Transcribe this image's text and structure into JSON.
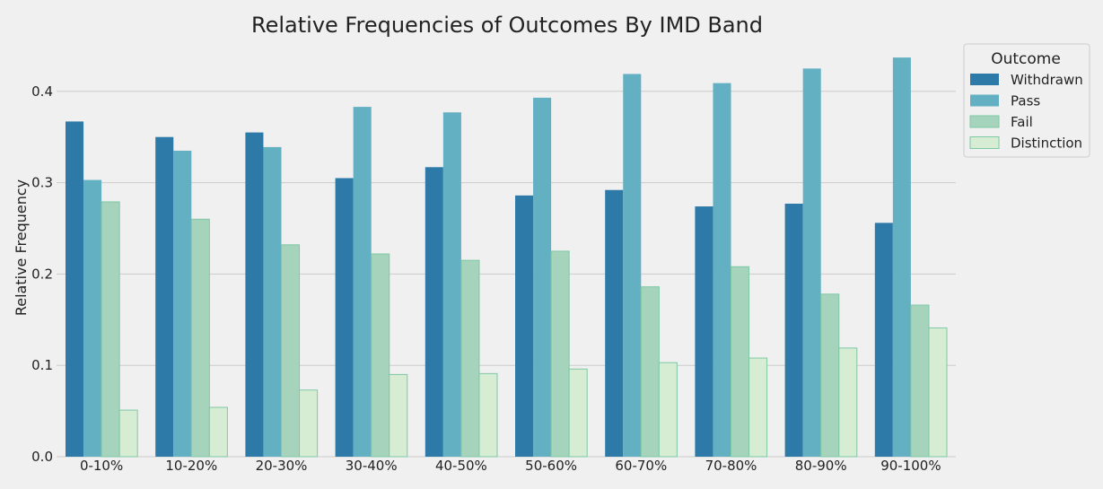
{
  "chart_data": {
    "type": "bar",
    "title": "Relative Frequencies of Outcomes By IMD Band",
    "xlabel": "",
    "ylabel": "Relative Frequency",
    "ylim": [
      0,
      0.44
    ],
    "yticks": [
      0.0,
      0.1,
      0.2,
      0.3,
      0.4
    ],
    "ytick_labels": [
      "0.0",
      "0.1",
      "0.2",
      "0.3",
      "0.4"
    ],
    "grid": true,
    "legend_title": "Outcome",
    "legend_position": "outside-top-right",
    "categories": [
      "0-10%",
      "10-20%",
      "20-30%",
      "30-40%",
      "40-50%",
      "50-60%",
      "60-70%",
      "70-80%",
      "80-90%",
      "90-100%"
    ],
    "series": [
      {
        "name": "Withdrawn",
        "color": "#2d79a7",
        "values": [
          0.367,
          0.35,
          0.355,
          0.305,
          0.317,
          0.286,
          0.292,
          0.274,
          0.277,
          0.256
        ]
      },
      {
        "name": "Pass",
        "color": "#62b0c2",
        "values": [
          0.303,
          0.335,
          0.339,
          0.383,
          0.377,
          0.393,
          0.419,
          0.409,
          0.425,
          0.437
        ]
      },
      {
        "name": "Fail",
        "color": "#a5d3bb",
        "values": [
          0.279,
          0.26,
          0.232,
          0.222,
          0.215,
          0.225,
          0.186,
          0.208,
          0.178,
          0.166
        ]
      },
      {
        "name": "Distinction",
        "color": "#d6ecd3",
        "values": [
          0.051,
          0.054,
          0.073,
          0.09,
          0.091,
          0.096,
          0.103,
          0.108,
          0.119,
          0.141
        ]
      }
    ]
  }
}
